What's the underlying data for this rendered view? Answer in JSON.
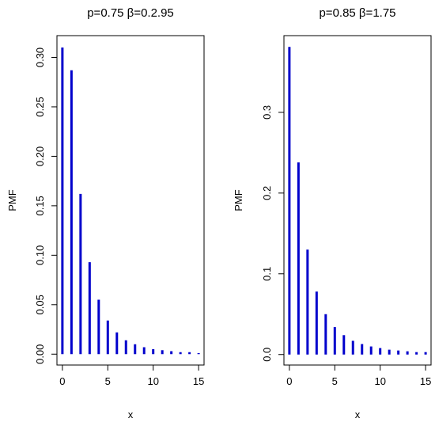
{
  "chart_data": [
    {
      "type": "bar",
      "title": "p=0.75  β=0.2.95",
      "xlabel": "x",
      "ylabel": "PMF",
      "x": [
        0,
        1,
        2,
        3,
        4,
        5,
        6,
        7,
        8,
        9,
        10,
        11,
        12,
        13,
        14,
        15
      ],
      "values": [
        0.31,
        0.287,
        0.162,
        0.093,
        0.055,
        0.034,
        0.022,
        0.014,
        0.01,
        0.007,
        0.005,
        0.004,
        0.003,
        0.002,
        0.002,
        0.001
      ],
      "xlim": [
        -0.6,
        15.6
      ],
      "ylim": [
        -0.011,
        0.322
      ],
      "xticks": [
        0,
        5,
        10,
        15
      ],
      "yticks": [
        0.0,
        0.05,
        0.1,
        0.15,
        0.2,
        0.25,
        0.3
      ],
      "ytick_labels": [
        "0.00",
        "0.05",
        "0.10",
        "0.15",
        "0.20",
        "0.25",
        "0.30"
      ],
      "color": "#0000cc"
    },
    {
      "type": "bar",
      "title": "p=0.85  β=1.75",
      "xlabel": "x",
      "ylabel": "PMF",
      "x": [
        0,
        1,
        2,
        3,
        4,
        5,
        6,
        7,
        8,
        9,
        10,
        11,
        12,
        13,
        14,
        15
      ],
      "values": [
        0.381,
        0.238,
        0.13,
        0.078,
        0.05,
        0.034,
        0.024,
        0.017,
        0.013,
        0.01,
        0.008,
        0.006,
        0.005,
        0.004,
        0.003,
        0.003
      ],
      "xlim": [
        -0.6,
        15.6
      ],
      "ylim": [
        -0.013,
        0.395
      ],
      "xticks": [
        0,
        5,
        10,
        15
      ],
      "yticks": [
        0.0,
        0.1,
        0.2,
        0.3
      ],
      "ytick_labels": [
        "0.0",
        "0.1",
        "0.2",
        "0.3"
      ],
      "color": "#0000cc"
    }
  ]
}
